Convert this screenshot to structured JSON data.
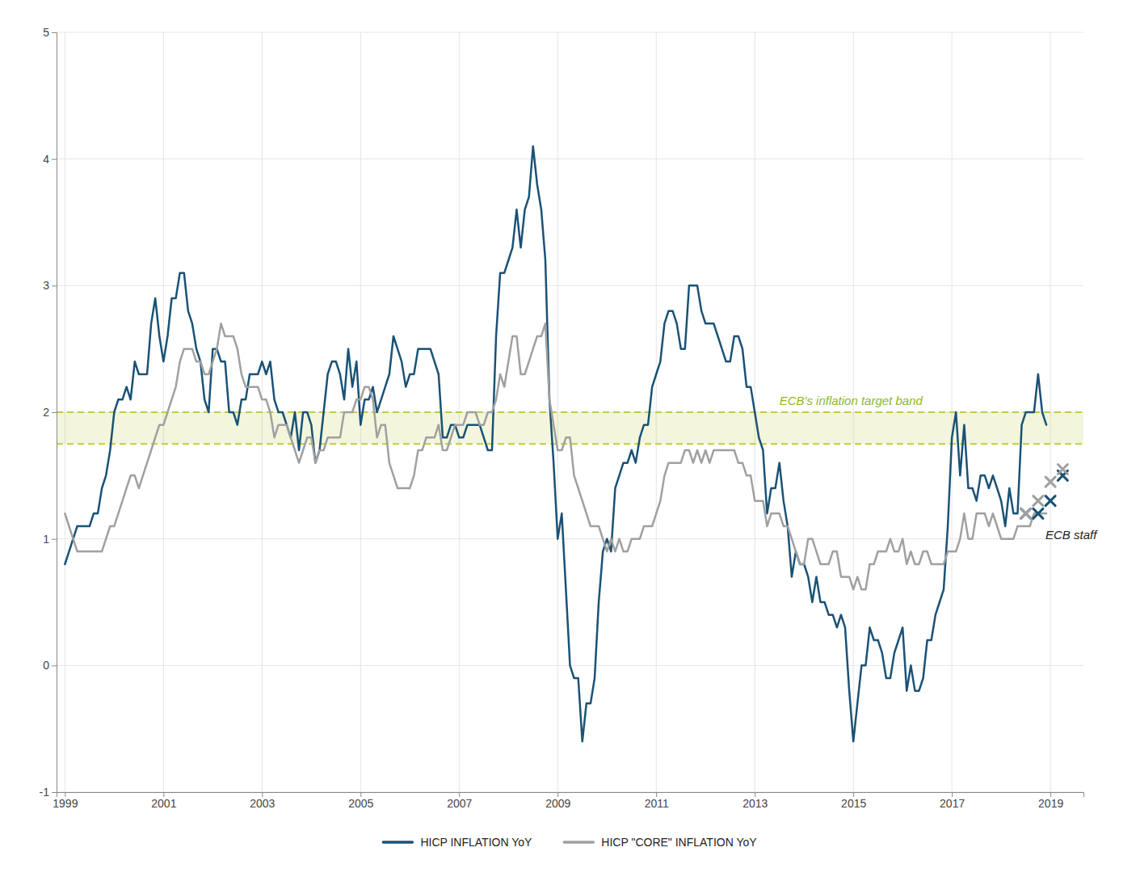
{
  "chart_data": {
    "type": "line",
    "xlim": [
      1998.83,
      2019.67
    ],
    "ylim": [
      -1.0,
      5.0
    ],
    "xticks": [
      1999,
      2001,
      2003,
      2005,
      2007,
      2009,
      2011,
      2013,
      2015,
      2017,
      2019
    ],
    "yticks": [
      -1,
      0,
      1,
      2,
      3,
      4,
      5
    ],
    "grid": true,
    "legend": "bottom",
    "x": [
      1999.0,
      1999.083,
      1999.167,
      1999.25,
      1999.333,
      1999.417,
      1999.5,
      1999.583,
      1999.667,
      1999.75,
      1999.833,
      1999.917,
      2000.0,
      2000.083,
      2000.167,
      2000.25,
      2000.333,
      2000.417,
      2000.5,
      2000.583,
      2000.667,
      2000.75,
      2000.833,
      2000.917,
      2001.0,
      2001.083,
      2001.167,
      2001.25,
      2001.333,
      2001.417,
      2001.5,
      2001.583,
      2001.667,
      2001.75,
      2001.833,
      2001.917,
      2002.0,
      2002.083,
      2002.167,
      2002.25,
      2002.333,
      2002.417,
      2002.5,
      2002.583,
      2002.667,
      2002.75,
      2002.833,
      2002.917,
      2003.0,
      2003.083,
      2003.167,
      2003.25,
      2003.333,
      2003.417,
      2003.5,
      2003.583,
      2003.667,
      2003.75,
      2003.833,
      2003.917,
      2004.0,
      2004.083,
      2004.167,
      2004.25,
      2004.333,
      2004.417,
      2004.5,
      2004.583,
      2004.667,
      2004.75,
      2004.833,
      2004.917,
      2005.0,
      2005.083,
      2005.167,
      2005.25,
      2005.333,
      2005.417,
      2005.5,
      2005.583,
      2005.667,
      2005.75,
      2005.833,
      2005.917,
      2006.0,
      2006.083,
      2006.167,
      2006.25,
      2006.333,
      2006.417,
      2006.5,
      2006.583,
      2006.667,
      2006.75,
      2006.833,
      2006.917,
      2007.0,
      2007.083,
      2007.167,
      2007.25,
      2007.333,
      2007.417,
      2007.5,
      2007.583,
      2007.667,
      2007.75,
      2007.833,
      2007.917,
      2008.0,
      2008.083,
      2008.167,
      2008.25,
      2008.333,
      2008.417,
      2008.5,
      2008.583,
      2008.667,
      2008.75,
      2008.833,
      2008.917,
      2009.0,
      2009.083,
      2009.167,
      2009.25,
      2009.333,
      2009.417,
      2009.5,
      2009.583,
      2009.667,
      2009.75,
      2009.833,
      2009.917,
      2010.0,
      2010.083,
      2010.167,
      2010.25,
      2010.333,
      2010.417,
      2010.5,
      2010.583,
      2010.667,
      2010.75,
      2010.833,
      2010.917,
      2011.0,
      2011.083,
      2011.167,
      2011.25,
      2011.333,
      2011.417,
      2011.5,
      2011.583,
      2011.667,
      2011.75,
      2011.833,
      2011.917,
      2012.0,
      2012.083,
      2012.167,
      2012.25,
      2012.333,
      2012.417,
      2012.5,
      2012.583,
      2012.667,
      2012.75,
      2012.833,
      2012.917,
      2013.0,
      2013.083,
      2013.167,
      2013.25,
      2013.333,
      2013.417,
      2013.5,
      2013.583,
      2013.667,
      2013.75,
      2013.833,
      2013.917,
      2014.0,
      2014.083,
      2014.167,
      2014.25,
      2014.333,
      2014.417,
      2014.5,
      2014.583,
      2014.667,
      2014.75,
      2014.833,
      2014.917,
      2015.0,
      2015.083,
      2015.167,
      2015.25,
      2015.333,
      2015.417,
      2015.5,
      2015.583,
      2015.667,
      2015.75,
      2015.833,
      2015.917,
      2016.0,
      2016.083,
      2016.167,
      2016.25,
      2016.333,
      2016.417,
      2016.5,
      2016.583,
      2016.667,
      2016.75,
      2016.833,
      2016.917,
      2017.0,
      2017.083,
      2017.167,
      2017.25,
      2017.333,
      2017.417,
      2017.5,
      2017.583,
      2017.667,
      2017.75,
      2017.833,
      2017.917,
      2018.0,
      2018.083,
      2018.167,
      2018.25,
      2018.333,
      2018.417,
      2018.5,
      2018.583,
      2018.667,
      2018.75,
      2018.833,
      2018.917
    ],
    "series": [
      {
        "name": "HICP INFLATION YoY",
        "color": "#1A5276",
        "values": [
          0.8,
          0.9,
          1.0,
          1.1,
          1.1,
          1.1,
          1.1,
          1.2,
          1.2,
          1.4,
          1.5,
          1.7,
          2.0,
          2.1,
          2.1,
          2.2,
          2.1,
          2.4,
          2.3,
          2.3,
          2.3,
          2.7,
          2.9,
          2.6,
          2.4,
          2.6,
          2.9,
          2.9,
          3.1,
          3.1,
          2.8,
          2.7,
          2.5,
          2.4,
          2.1,
          2.0,
          2.5,
          2.5,
          2.4,
          2.4,
          2.0,
          2.0,
          1.9,
          2.1,
          2.1,
          2.3,
          2.3,
          2.3,
          2.4,
          2.3,
          2.4,
          2.1,
          2.0,
          2.0,
          1.9,
          1.8,
          2.0,
          1.7,
          2.0,
          2.0,
          1.9,
          1.6,
          1.7,
          2.0,
          2.3,
          2.4,
          2.4,
          2.3,
          2.1,
          2.5,
          2.2,
          2.4,
          1.9,
          2.1,
          2.1,
          2.2,
          2.0,
          2.1,
          2.2,
          2.3,
          2.6,
          2.5,
          2.4,
          2.2,
          2.3,
          2.3,
          2.5,
          2.5,
          2.5,
          2.5,
          2.4,
          2.3,
          1.8,
          1.8,
          1.9,
          1.9,
          1.8,
          1.8,
          1.9,
          1.9,
          1.9,
          1.9,
          1.8,
          1.7,
          1.7,
          2.6,
          3.1,
          3.1,
          3.2,
          3.3,
          3.6,
          3.3,
          3.6,
          3.7,
          4.1,
          3.8,
          3.6,
          3.2,
          2.1,
          1.6,
          1.0,
          1.2,
          0.6,
          0.0,
          -0.1,
          -0.1,
          -0.6,
          -0.3,
          -0.3,
          -0.1,
          0.5,
          0.9,
          1.0,
          0.9,
          1.4,
          1.5,
          1.6,
          1.6,
          1.7,
          1.6,
          1.8,
          1.9,
          1.9,
          2.2,
          2.3,
          2.4,
          2.7,
          2.8,
          2.8,
          2.7,
          2.5,
          2.5,
          3.0,
          3.0,
          3.0,
          2.8,
          2.7,
          2.7,
          2.7,
          2.6,
          2.5,
          2.4,
          2.4,
          2.6,
          2.6,
          2.5,
          2.2,
          2.2,
          2.0,
          1.8,
          1.7,
          1.2,
          1.4,
          1.4,
          1.6,
          1.3,
          1.1,
          0.7,
          0.9,
          0.8,
          0.8,
          0.7,
          0.5,
          0.7,
          0.5,
          0.5,
          0.4,
          0.4,
          0.3,
          0.4,
          0.3,
          -0.2,
          -0.6,
          -0.3,
          0.0,
          0.0,
          0.3,
          0.2,
          0.2,
          0.1,
          -0.1,
          -0.1,
          0.1,
          0.2,
          0.3,
          -0.2,
          0.0,
          -0.2,
          -0.2,
          -0.1,
          0.2,
          0.2,
          0.4,
          0.5,
          0.6,
          1.1,
          1.8,
          2.0,
          1.5,
          1.9,
          1.4,
          1.4,
          1.3,
          1.5,
          1.5,
          1.4,
          1.5,
          1.4,
          1.3,
          1.1,
          1.4,
          1.2,
          1.2,
          1.9,
          2.0,
          2.0,
          2.0,
          2.3,
          2.0,
          1.9
        ]
      },
      {
        "name": "HICP \"CORE\" INFLATION YoY",
        "color": "#A0A0A0",
        "values": [
          1.2,
          1.1,
          1.0,
          0.9,
          0.9,
          0.9,
          0.9,
          0.9,
          0.9,
          0.9,
          1.0,
          1.1,
          1.1,
          1.2,
          1.3,
          1.4,
          1.5,
          1.5,
          1.4,
          1.5,
          1.6,
          1.7,
          1.8,
          1.9,
          1.9,
          2.0,
          2.1,
          2.2,
          2.4,
          2.5,
          2.5,
          2.5,
          2.4,
          2.4,
          2.3,
          2.3,
          2.4,
          2.5,
          2.7,
          2.6,
          2.6,
          2.6,
          2.5,
          2.3,
          2.2,
          2.2,
          2.2,
          2.2,
          2.1,
          2.1,
          2.0,
          1.8,
          1.9,
          1.9,
          1.9,
          1.8,
          1.7,
          1.6,
          1.7,
          1.8,
          1.8,
          1.6,
          1.7,
          1.7,
          1.8,
          1.8,
          1.8,
          1.8,
          2.0,
          2.0,
          2.0,
          2.1,
          2.1,
          2.2,
          2.2,
          2.1,
          1.8,
          1.9,
          1.9,
          1.6,
          1.5,
          1.4,
          1.4,
          1.4,
          1.4,
          1.5,
          1.7,
          1.7,
          1.8,
          1.8,
          1.8,
          1.9,
          1.7,
          1.7,
          1.8,
          1.9,
          1.9,
          1.9,
          2.0,
          2.0,
          2.0,
          1.9,
          1.9,
          2.0,
          2.0,
          2.1,
          2.3,
          2.2,
          2.4,
          2.6,
          2.6,
          2.3,
          2.3,
          2.4,
          2.5,
          2.6,
          2.6,
          2.7,
          2.1,
          1.9,
          1.7,
          1.7,
          1.8,
          1.8,
          1.5,
          1.4,
          1.3,
          1.2,
          1.1,
          1.1,
          1.1,
          1.0,
          0.9,
          1.0,
          0.9,
          1.0,
          0.9,
          0.9,
          1.0,
          1.0,
          1.0,
          1.1,
          1.1,
          1.1,
          1.2,
          1.3,
          1.5,
          1.6,
          1.6,
          1.6,
          1.6,
          1.7,
          1.7,
          1.6,
          1.7,
          1.6,
          1.7,
          1.6,
          1.7,
          1.7,
          1.7,
          1.7,
          1.7,
          1.7,
          1.6,
          1.6,
          1.5,
          1.5,
          1.3,
          1.3,
          1.3,
          1.1,
          1.2,
          1.2,
          1.2,
          1.1,
          1.1,
          1.0,
          0.9,
          0.8,
          0.8,
          1.0,
          1.0,
          0.9,
          0.8,
          0.8,
          0.8,
          0.9,
          0.9,
          0.7,
          0.7,
          0.7,
          0.6,
          0.7,
          0.6,
          0.6,
          0.8,
          0.8,
          0.9,
          0.9,
          0.9,
          1.0,
          0.9,
          0.9,
          1.0,
          0.8,
          0.9,
          0.8,
          0.8,
          0.9,
          0.9,
          0.8,
          0.8,
          0.8,
          0.8,
          0.9,
          0.9,
          0.9,
          1.0,
          1.2,
          1.0,
          1.0,
          1.2,
          1.2,
          1.2,
          1.1,
          1.2,
          1.1,
          1.0,
          1.0,
          1.0,
          1.0,
          1.1,
          1.1,
          1.1,
          1.1,
          1.2,
          1.2,
          1.2,
          1.2
        ]
      },
      {
        "type": "scatter",
        "marker": "x",
        "color": "#1A5276",
        "x": [
          2018.5,
          2018.75,
          2019.0,
          2019.25
        ],
        "values": [
          1.2,
          1.2,
          1.3,
          1.5
        ]
      },
      {
        "type": "scatter",
        "marker": "x",
        "color": "#A0A0A0",
        "x": [
          2018.5,
          2018.75,
          2019.0,
          2019.25
        ],
        "values": [
          1.2,
          1.3,
          1.45,
          1.55
        ]
      }
    ],
    "target_band": {
      "lower": 1.75,
      "upper": 2.0,
      "color": "#BFCE3C"
    },
    "annotations": [
      {
        "text": "ECB staff",
        "x": 2018.9,
        "y": 1.0
      },
      {
        "text": "ECB's inflation target band",
        "x": 2013.5,
        "y": 2.06,
        "color": "#8DB829"
      }
    ]
  }
}
